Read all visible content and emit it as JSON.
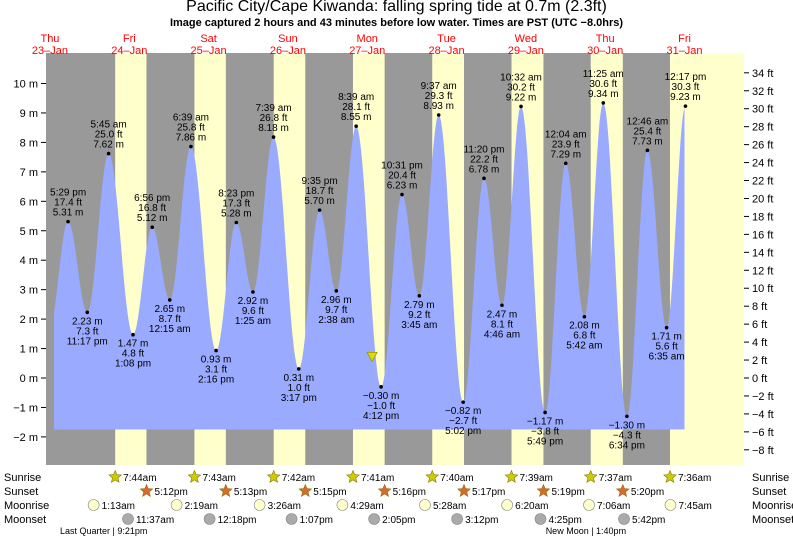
{
  "title": "Pacific City/Cape Kiwanda: falling  spring tide at 0.7m (2.3ft)",
  "subtitle": "Image captured 2 hours and 43 minutes before low water. Times are PST (UTC −8.0hrs)",
  "colors": {
    "night": "#999999",
    "day": "#ffffcc",
    "water": "#99aaff",
    "day_header": "#ff0000",
    "sunrise": "#cccc00",
    "sunset": "#dd6633",
    "moonrise": "#ffffcc",
    "moonset": "#aaaaaa",
    "current": "#dddd00"
  },
  "chart_data": {
    "type": "area",
    "left_axis": {
      "unit": "m",
      "ylim": [
        -2.5,
        10.7
      ],
      "ticks": [
        -2,
        -1,
        0,
        1,
        2,
        3,
        4,
        5,
        6,
        7,
        8,
        9,
        10
      ],
      "tick_labels": [
        "−2 m",
        "−1 m",
        "0 m",
        "1 m",
        "2 m",
        "3 m",
        "4 m",
        "5 m",
        "6 m",
        "7 m",
        "8 m",
        "9 m",
        "10 m"
      ]
    },
    "right_axis": {
      "unit": "ft",
      "ticks": [
        -8,
        -6,
        -4,
        -2,
        0,
        2,
        4,
        6,
        8,
        10,
        12,
        14,
        16,
        18,
        20,
        22,
        24,
        26,
        28,
        30,
        32,
        34
      ],
      "tick_labels": [
        "−8 ft",
        "−6 ft",
        "−4 ft",
        "−2 ft",
        "0 ft",
        "2 ft",
        "4 ft",
        "6 ft",
        "8 ft",
        "10 ft",
        "12 ft",
        "14 ft",
        "16 ft",
        "18 ft",
        "20 ft",
        "22 ft",
        "24 ft",
        "26 ft",
        "28 ft",
        "30 ft",
        "32 ft",
        "34 ft"
      ]
    },
    "x_range_days": [
      0,
      9
    ],
    "days": [
      {
        "dow": "Thu",
        "date": "23–Jan",
        "d": 0
      },
      {
        "dow": "Fri",
        "date": "24–Jan",
        "d": 1
      },
      {
        "dow": "Sat",
        "date": "25–Jan",
        "d": 2
      },
      {
        "dow": "Sun",
        "date": "26–Jan",
        "d": 3
      },
      {
        "dow": "Mon",
        "date": "27–Jan",
        "d": 4
      },
      {
        "dow": "Tue",
        "date": "28–Jan",
        "d": 5
      },
      {
        "dow": "Wed",
        "date": "29–Jan",
        "d": 6
      },
      {
        "dow": "Thu",
        "date": "30–Jan",
        "d": 7
      },
      {
        "dow": "Fri",
        "date": "31–Jan",
        "d": 8
      }
    ],
    "daylight": [
      {
        "day": 1,
        "rise": "7:44",
        "set": "17:12"
      },
      {
        "day": 2,
        "rise": "7:43",
        "set": "17:13"
      },
      {
        "day": 3,
        "rise": "7:42",
        "set": "17:15"
      },
      {
        "day": 4,
        "rise": "7:41",
        "set": "17:16"
      },
      {
        "day": 5,
        "rise": "7:40",
        "set": "17:17"
      },
      {
        "day": 6,
        "rise": "7:39",
        "set": "17:19"
      },
      {
        "day": 7,
        "rise": "7:37",
        "set": "17:20"
      },
      {
        "day": 8,
        "rise": "7:36",
        "set": ""
      }
    ],
    "tides": [
      {
        "day": 0,
        "time": "17:29",
        "m": 5.31,
        "lines": [
          "5:29 pm",
          "17.4 ft",
          "5.31 m"
        ],
        "pos": "above"
      },
      {
        "day": 0,
        "time": "23:17",
        "m": 2.23,
        "lines": [
          "2.23 m",
          "7.3 ft",
          "11:17 pm"
        ],
        "pos": "below"
      },
      {
        "day": 1,
        "time": "5:45",
        "m": 7.62,
        "lines": [
          "5:45 am",
          "25.0 ft",
          "7.62 m"
        ],
        "pos": "above"
      },
      {
        "day": 1,
        "time": "13:08",
        "m": 1.47,
        "lines": [
          "1.47 m",
          "4.8 ft",
          "1:08 pm"
        ],
        "pos": "below"
      },
      {
        "day": 1,
        "time": "18:56",
        "m": 5.12,
        "lines": [
          "6:56 pm",
          "16.8 ft",
          "5.12 m"
        ],
        "pos": "above"
      },
      {
        "day": 2,
        "time": "0:15",
        "m": 2.65,
        "lines": [
          "2.65 m",
          "8.7 ft",
          "12:15 am"
        ],
        "pos": "below"
      },
      {
        "day": 2,
        "time": "6:39",
        "m": 7.86,
        "lines": [
          "6:39 am",
          "25.8 ft",
          "7.86 m"
        ],
        "pos": "above"
      },
      {
        "day": 2,
        "time": "14:16",
        "m": 0.93,
        "lines": [
          "0.93 m",
          "3.1 ft",
          "2:16 pm"
        ],
        "pos": "below"
      },
      {
        "day": 2,
        "time": "20:23",
        "m": 5.28,
        "lines": [
          "8:23 pm",
          "17.3 ft",
          "5.28 m"
        ],
        "pos": "above"
      },
      {
        "day": 3,
        "time": "1:25",
        "m": 2.92,
        "lines": [
          "2.92 m",
          "9.6 ft",
          "1:25 am"
        ],
        "pos": "below"
      },
      {
        "day": 3,
        "time": "7:39",
        "m": 8.18,
        "lines": [
          "7:39 am",
          "26.8 ft",
          "8.18 m"
        ],
        "pos": "above"
      },
      {
        "day": 3,
        "time": "15:17",
        "m": 0.31,
        "lines": [
          "0.31 m",
          "1.0 ft",
          "3:17 pm"
        ],
        "pos": "below"
      },
      {
        "day": 3,
        "time": "21:35",
        "m": 5.7,
        "lines": [
          "9:35 pm",
          "18.7 ft",
          "5.70 m"
        ],
        "pos": "above"
      },
      {
        "day": 4,
        "time": "2:38",
        "m": 2.96,
        "lines": [
          "2.96 m",
          "9.7 ft",
          "2:38 am"
        ],
        "pos": "below"
      },
      {
        "day": 4,
        "time": "8:39",
        "m": 8.55,
        "lines": [
          "8:39 am",
          "28.1 ft",
          "8.55 m"
        ],
        "pos": "above"
      },
      {
        "day": 4,
        "time": "16:12",
        "m": -0.3,
        "lines": [
          "−0.30 m",
          "−1.0 ft",
          "4:12 pm"
        ],
        "pos": "below"
      },
      {
        "day": 4,
        "time": "22:31",
        "m": 6.23,
        "lines": [
          "10:31 pm",
          "20.4 ft",
          "6.23 m"
        ],
        "pos": "above"
      },
      {
        "day": 5,
        "time": "3:45",
        "m": 2.79,
        "lines": [
          "2.79 m",
          "9.2 ft",
          "3:45 am"
        ],
        "pos": "below"
      },
      {
        "day": 5,
        "time": "9:37",
        "m": 8.93,
        "lines": [
          "9:37 am",
          "29.3 ft",
          "8.93 m"
        ],
        "pos": "above"
      },
      {
        "day": 5,
        "time": "17:02",
        "m": -0.82,
        "lines": [
          "−0.82 m",
          "−2.7 ft",
          "5:02 pm"
        ],
        "pos": "below"
      },
      {
        "day": 5,
        "time": "23:20",
        "m": 6.78,
        "lines": [
          "11:20 pm",
          "22.2 ft",
          "6.78 m"
        ],
        "pos": "above"
      },
      {
        "day": 6,
        "time": "4:46",
        "m": 2.47,
        "lines": [
          "2.47 m",
          "8.1 ft",
          "4:46 am"
        ],
        "pos": "below"
      },
      {
        "day": 6,
        "time": "10:32",
        "m": 9.22,
        "lines": [
          "10:32 am",
          "30.2 ft",
          "9.22 m"
        ],
        "pos": "above"
      },
      {
        "day": 6,
        "time": "17:49",
        "m": -1.17,
        "lines": [
          "−1.17 m",
          "−3.8 ft",
          "5:49 pm"
        ],
        "pos": "below"
      },
      {
        "day": 7,
        "time": "0:04",
        "m": 7.29,
        "lines": [
          "12:04 am",
          "23.9 ft",
          "7.29 m"
        ],
        "pos": "above"
      },
      {
        "day": 7,
        "time": "5:42",
        "m": 2.08,
        "lines": [
          "2.08 m",
          "6.8 ft",
          "5:42 am"
        ],
        "pos": "below"
      },
      {
        "day": 7,
        "time": "11:25",
        "m": 9.34,
        "lines": [
          "11:25 am",
          "30.6 ft",
          "9.34 m"
        ],
        "pos": "above"
      },
      {
        "day": 7,
        "time": "18:34",
        "m": -1.3,
        "lines": [
          "−1.30 m",
          "−4.3 ft",
          "6:34 pm"
        ],
        "pos": "below"
      },
      {
        "day": 8,
        "time": "0:46",
        "m": 7.73,
        "lines": [
          "12:46 am",
          "25.4 ft",
          "7.73 m"
        ],
        "pos": "above"
      },
      {
        "day": 8,
        "time": "6:35",
        "m": 1.71,
        "lines": [
          "1.71 m",
          "5.6 ft",
          "6:35 am"
        ],
        "pos": "below"
      },
      {
        "day": 8,
        "time": "12:17",
        "m": 9.23,
        "lines": [
          "12:17 pm",
          "30.3 ft",
          "9.23 m"
        ],
        "pos": "above"
      }
    ],
    "current": {
      "day": 4,
      "time": "13:29",
      "m": 0.7
    },
    "rows": {
      "sunrise": {
        "label": "Sunrise",
        "events": [
          {
            "day": 1,
            "time": "7:44",
            "text": "7:44am"
          },
          {
            "day": 2,
            "time": "7:43",
            "text": "7:43am"
          },
          {
            "day": 3,
            "time": "7:42",
            "text": "7:42am"
          },
          {
            "day": 4,
            "time": "7:41",
            "text": "7:41am"
          },
          {
            "day": 5,
            "time": "7:40",
            "text": "7:40am"
          },
          {
            "day": 6,
            "time": "7:39",
            "text": "7:39am"
          },
          {
            "day": 7,
            "time": "7:37",
            "text": "7:37am"
          },
          {
            "day": 8,
            "time": "7:36",
            "text": "7:36am"
          }
        ]
      },
      "sunset": {
        "label": "Sunset",
        "events": [
          {
            "day": 1,
            "time": "17:12",
            "text": "5:12pm"
          },
          {
            "day": 2,
            "time": "17:13",
            "text": "5:13pm"
          },
          {
            "day": 3,
            "time": "17:15",
            "text": "5:15pm"
          },
          {
            "day": 4,
            "time": "17:16",
            "text": "5:16pm"
          },
          {
            "day": 5,
            "time": "17:17",
            "text": "5:17pm"
          },
          {
            "day": 6,
            "time": "17:19",
            "text": "5:19pm"
          },
          {
            "day": 7,
            "time": "17:20",
            "text": "5:20pm"
          }
        ]
      },
      "moonrise": {
        "label": "Moonrise",
        "events": [
          {
            "day": 1,
            "time": "1:13",
            "text": "1:13am"
          },
          {
            "day": 2,
            "time": "2:19",
            "text": "2:19am"
          },
          {
            "day": 3,
            "time": "3:26",
            "text": "3:26am"
          },
          {
            "day": 4,
            "time": "4:29",
            "text": "4:29am"
          },
          {
            "day": 5,
            "time": "5:28",
            "text": "5:28am"
          },
          {
            "day": 6,
            "time": "6:20",
            "text": "6:20am"
          },
          {
            "day": 7,
            "time": "7:06",
            "text": "7:06am"
          },
          {
            "day": 8,
            "time": "7:45",
            "text": "7:45am"
          }
        ]
      },
      "moonset": {
        "label": "Moonset",
        "events": [
          {
            "day": 1,
            "time": "11:37",
            "text": "11:37am"
          },
          {
            "day": 2,
            "time": "12:18",
            "text": "12:18pm"
          },
          {
            "day": 3,
            "time": "13:07",
            "text": "1:07pm"
          },
          {
            "day": 4,
            "time": "14:05",
            "text": "2:05pm"
          },
          {
            "day": 5,
            "time": "15:12",
            "text": "3:12pm"
          },
          {
            "day": 6,
            "time": "16:25",
            "text": "4:25pm"
          },
          {
            "day": 7,
            "time": "17:42",
            "text": "5:42pm"
          }
        ]
      }
    },
    "phases": [
      {
        "text": "Last Quarter | 9:21pm",
        "day": 0,
        "time": "21:21"
      },
      {
        "text": "New Moon | 1:40pm",
        "day": 7,
        "time": "13:40"
      }
    ]
  }
}
